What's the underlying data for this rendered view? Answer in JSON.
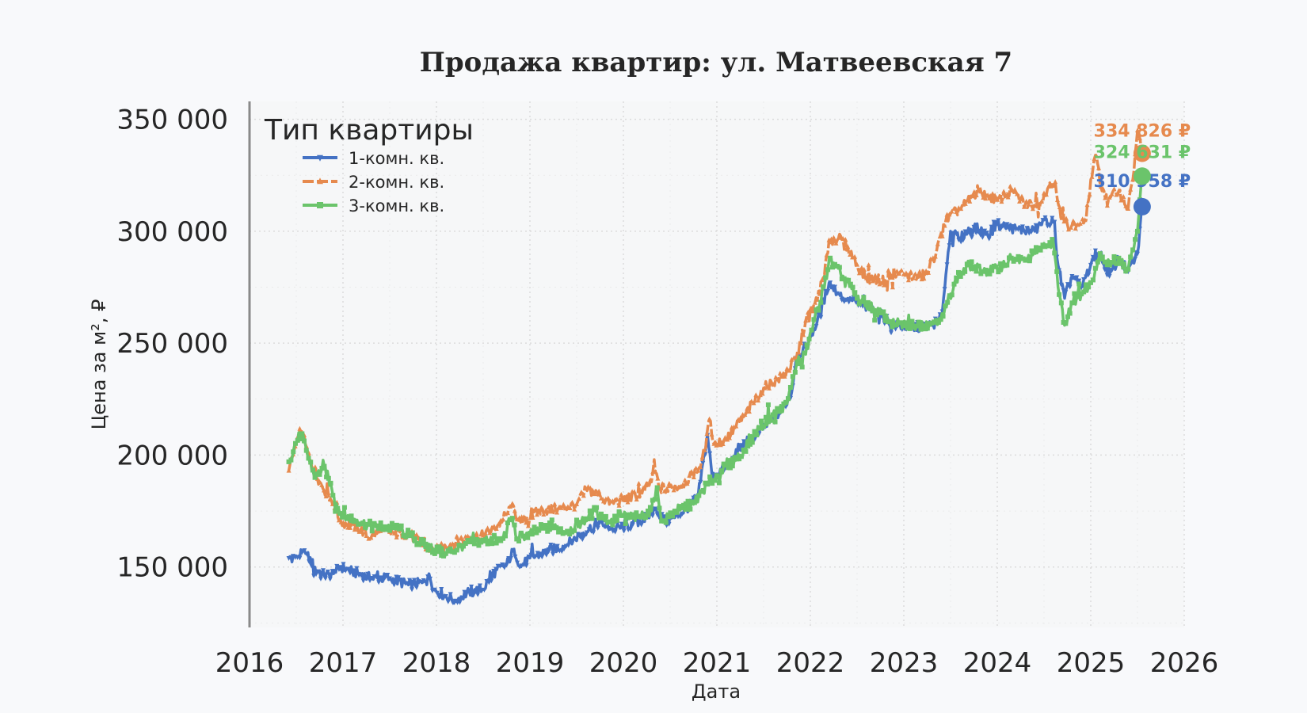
{
  "chart_data": {
    "type": "line",
    "title": "Продажа квартир: ул. Матвеевская 7",
    "xlabel": "Дата",
    "ylabel": "Цена за м², ₽",
    "xlim": [
      2016,
      2026
    ],
    "ylim": [
      123000,
      358000
    ],
    "x_ticks": [
      "2016",
      "2017",
      "2018",
      "2019",
      "2020",
      "2021",
      "2022",
      "2023",
      "2024",
      "2025",
      "2026"
    ],
    "y_ticks": [
      {
        "value": 150000,
        "label": "150 000"
      },
      {
        "value": 200000,
        "label": "200 000"
      },
      {
        "value": 250000,
        "label": "250 000"
      },
      {
        "value": 300000,
        "label": "300 000"
      },
      {
        "value": 350000,
        "label": "350 000"
      }
    ],
    "grid": true,
    "legend": {
      "title": "Тип квартиры",
      "placement": "top-left"
    },
    "series": [
      {
        "name": "1-комн. кв.",
        "color": "#4472c4",
        "marker": "down-triangle",
        "end_label": "310 958 ₽",
        "end_value": 310958,
        "points": [
          [
            2016.42,
            154000
          ],
          [
            2016.5,
            155000
          ],
          [
            2016.6,
            156000
          ],
          [
            2016.7,
            150000
          ],
          [
            2016.8,
            146000
          ],
          [
            2016.9,
            147000
          ],
          [
            2016.98,
            150000
          ],
          [
            2017.1,
            148000
          ],
          [
            2017.3,
            145000
          ],
          [
            2017.5,
            145000
          ],
          [
            2017.7,
            142000
          ],
          [
            2017.85,
            143000
          ],
          [
            2017.92,
            147000
          ],
          [
            2017.97,
            140000
          ],
          [
            2018.1,
            137000
          ],
          [
            2018.2,
            135000
          ],
          [
            2018.35,
            139000
          ],
          [
            2018.5,
            140000
          ],
          [
            2018.6,
            147000
          ],
          [
            2018.75,
            151000
          ],
          [
            2018.83,
            158000
          ],
          [
            2018.9,
            150000
          ],
          [
            2019.0,
            154000
          ],
          [
            2019.2,
            157000
          ],
          [
            2019.4,
            160000
          ],
          [
            2019.55,
            165000
          ],
          [
            2019.75,
            170000
          ],
          [
            2019.9,
            167000
          ],
          [
            2020.1,
            169000
          ],
          [
            2020.25,
            172000
          ],
          [
            2020.35,
            176000
          ],
          [
            2020.45,
            170000
          ],
          [
            2020.55,
            172000
          ],
          [
            2020.7,
            177000
          ],
          [
            2020.8,
            182000
          ],
          [
            2020.9,
            209000
          ],
          [
            2020.95,
            190000
          ],
          [
            2021.1,
            195000
          ],
          [
            2021.3,
            205000
          ],
          [
            2021.5,
            212000
          ],
          [
            2021.7,
            220000
          ],
          [
            2021.8,
            228000
          ],
          [
            2021.85,
            244000
          ],
          [
            2021.95,
            248000
          ],
          [
            2022.1,
            262000
          ],
          [
            2022.2,
            277000
          ],
          [
            2022.3,
            272000
          ],
          [
            2022.4,
            270000
          ],
          [
            2022.55,
            267000
          ],
          [
            2022.7,
            264000
          ],
          [
            2022.9,
            258000
          ],
          [
            2023.1,
            257000
          ],
          [
            2023.3,
            258000
          ],
          [
            2023.4,
            261000
          ],
          [
            2023.5,
            300000
          ],
          [
            2023.6,
            297000
          ],
          [
            2023.75,
            302000
          ],
          [
            2023.9,
            298000
          ],
          [
            2024.0,
            303000
          ],
          [
            2024.2,
            301000
          ],
          [
            2024.4,
            300000
          ],
          [
            2024.5,
            305000
          ],
          [
            2024.6,
            304000
          ],
          [
            2024.65,
            285000
          ],
          [
            2024.72,
            270000
          ],
          [
            2024.8,
            280000
          ],
          [
            2024.9,
            275000
          ],
          [
            2025.0,
            285000
          ],
          [
            2025.1,
            290000
          ],
          [
            2025.2,
            280000
          ],
          [
            2025.3,
            288000
          ],
          [
            2025.4,
            282000
          ],
          [
            2025.5,
            290000
          ],
          [
            2025.55,
            310958
          ]
        ]
      },
      {
        "name": "2-комн. кв.",
        "color": "#e68a4e",
        "marker": "up-triangle",
        "end_label": "334 826 ₽",
        "end_value": 334826,
        "points": [
          [
            2016.42,
            193000
          ],
          [
            2016.5,
            205000
          ],
          [
            2016.55,
            212000
          ],
          [
            2016.62,
            201000
          ],
          [
            2016.75,
            188000
          ],
          [
            2016.9,
            178000
          ],
          [
            2016.98,
            170000
          ],
          [
            2017.15,
            168000
          ],
          [
            2017.3,
            163000
          ],
          [
            2017.4,
            166000
          ],
          [
            2017.55,
            165000
          ],
          [
            2017.7,
            165000
          ],
          [
            2017.85,
            160000
          ],
          [
            2017.97,
            157000
          ],
          [
            2018.1,
            159000
          ],
          [
            2018.3,
            163000
          ],
          [
            2018.5,
            164000
          ],
          [
            2018.7,
            170000
          ],
          [
            2018.8,
            177000
          ],
          [
            2018.9,
            170000
          ],
          [
            2019.1,
            175000
          ],
          [
            2019.3,
            176000
          ],
          [
            2019.5,
            178000
          ],
          [
            2019.6,
            185000
          ],
          [
            2019.75,
            182000
          ],
          [
            2019.85,
            178000
          ],
          [
            2020.0,
            180000
          ],
          [
            2020.2,
            183000
          ],
          [
            2020.3,
            188000
          ],
          [
            2020.33,
            198000
          ],
          [
            2020.38,
            185000
          ],
          [
            2020.6,
            186000
          ],
          [
            2020.8,
            193000
          ],
          [
            2020.88,
            203000
          ],
          [
            2020.92,
            216000
          ],
          [
            2020.97,
            205000
          ],
          [
            2021.1,
            207000
          ],
          [
            2021.3,
            218000
          ],
          [
            2021.5,
            230000
          ],
          [
            2021.7,
            235000
          ],
          [
            2021.85,
            243000
          ],
          [
            2021.95,
            260000
          ],
          [
            2022.05,
            268000
          ],
          [
            2022.15,
            280000
          ],
          [
            2022.2,
            296000
          ],
          [
            2022.3,
            297000
          ],
          [
            2022.4,
            293000
          ],
          [
            2022.5,
            285000
          ],
          [
            2022.6,
            279000
          ],
          [
            2022.8,
            278000
          ],
          [
            2022.95,
            281000
          ],
          [
            2023.1,
            279000
          ],
          [
            2023.25,
            281000
          ],
          [
            2023.35,
            291000
          ],
          [
            2023.45,
            305000
          ],
          [
            2023.6,
            310000
          ],
          [
            2023.8,
            318000
          ],
          [
            2023.9,
            316000
          ],
          [
            2024.0,
            314000
          ],
          [
            2024.15,
            318000
          ],
          [
            2024.3,
            312000
          ],
          [
            2024.45,
            312000
          ],
          [
            2024.55,
            320000
          ],
          [
            2024.62,
            322000
          ],
          [
            2024.68,
            306000
          ],
          [
            2024.75,
            303000
          ],
          [
            2024.85,
            303000
          ],
          [
            2024.95,
            305000
          ],
          [
            2025.0,
            323000
          ],
          [
            2025.05,
            334000
          ],
          [
            2025.12,
            318000
          ],
          [
            2025.2,
            315000
          ],
          [
            2025.3,
            318000
          ],
          [
            2025.4,
            310000
          ],
          [
            2025.45,
            323000
          ],
          [
            2025.5,
            345000
          ],
          [
            2025.55,
            334826
          ]
        ]
      },
      {
        "name": "3-комн. кв.",
        "color": "#6bc46b",
        "marker": "square",
        "end_label": "324 631 ₽",
        "end_value": 324631,
        "points": [
          [
            2016.42,
            197000
          ],
          [
            2016.48,
            204000
          ],
          [
            2016.55,
            210000
          ],
          [
            2016.62,
            200000
          ],
          [
            2016.7,
            190000
          ],
          [
            2016.8,
            195000
          ],
          [
            2016.88,
            185000
          ],
          [
            2016.98,
            173000
          ],
          [
            2017.15,
            171000
          ],
          [
            2017.3,
            168000
          ],
          [
            2017.45,
            168000
          ],
          [
            2017.6,
            167000
          ],
          [
            2017.72,
            164000
          ],
          [
            2017.85,
            160000
          ],
          [
            2017.97,
            158000
          ],
          [
            2018.1,
            156000
          ],
          [
            2018.3,
            160000
          ],
          [
            2018.5,
            162000
          ],
          [
            2018.7,
            162000
          ],
          [
            2018.8,
            172000
          ],
          [
            2018.87,
            163000
          ],
          [
            2019.0,
            165000
          ],
          [
            2019.2,
            168000
          ],
          [
            2019.4,
            166000
          ],
          [
            2019.55,
            170000
          ],
          [
            2019.7,
            175000
          ],
          [
            2019.85,
            170000
          ],
          [
            2020.0,
            173000
          ],
          [
            2020.15,
            172000
          ],
          [
            2020.3,
            175000
          ],
          [
            2020.35,
            185000
          ],
          [
            2020.42,
            170000
          ],
          [
            2020.55,
            175000
          ],
          [
            2020.75,
            178000
          ],
          [
            2020.9,
            187000
          ],
          [
            2021.05,
            193000
          ],
          [
            2021.25,
            200000
          ],
          [
            2021.45,
            212000
          ],
          [
            2021.6,
            218000
          ],
          [
            2021.75,
            223000
          ],
          [
            2021.85,
            240000
          ],
          [
            2021.95,
            245000
          ],
          [
            2022.05,
            262000
          ],
          [
            2022.15,
            275000
          ],
          [
            2022.2,
            287000
          ],
          [
            2022.35,
            280000
          ],
          [
            2022.5,
            270000
          ],
          [
            2022.7,
            265000
          ],
          [
            2022.9,
            258000
          ],
          [
            2023.1,
            258000
          ],
          [
            2023.3,
            259000
          ],
          [
            2023.42,
            262000
          ],
          [
            2023.55,
            278000
          ],
          [
            2023.7,
            285000
          ],
          [
            2023.85,
            282000
          ],
          [
            2024.0,
            283000
          ],
          [
            2024.15,
            288000
          ],
          [
            2024.3,
            287000
          ],
          [
            2024.45,
            292000
          ],
          [
            2024.55,
            293000
          ],
          [
            2024.6,
            295000
          ],
          [
            2024.65,
            275000
          ],
          [
            2024.72,
            258000
          ],
          [
            2024.8,
            268000
          ],
          [
            2024.9,
            272000
          ],
          [
            2025.0,
            277000
          ],
          [
            2025.1,
            290000
          ],
          [
            2025.2,
            285000
          ],
          [
            2025.3,
            288000
          ],
          [
            2025.4,
            283000
          ],
          [
            2025.5,
            300000
          ],
          [
            2025.55,
            324631
          ]
        ]
      }
    ]
  }
}
